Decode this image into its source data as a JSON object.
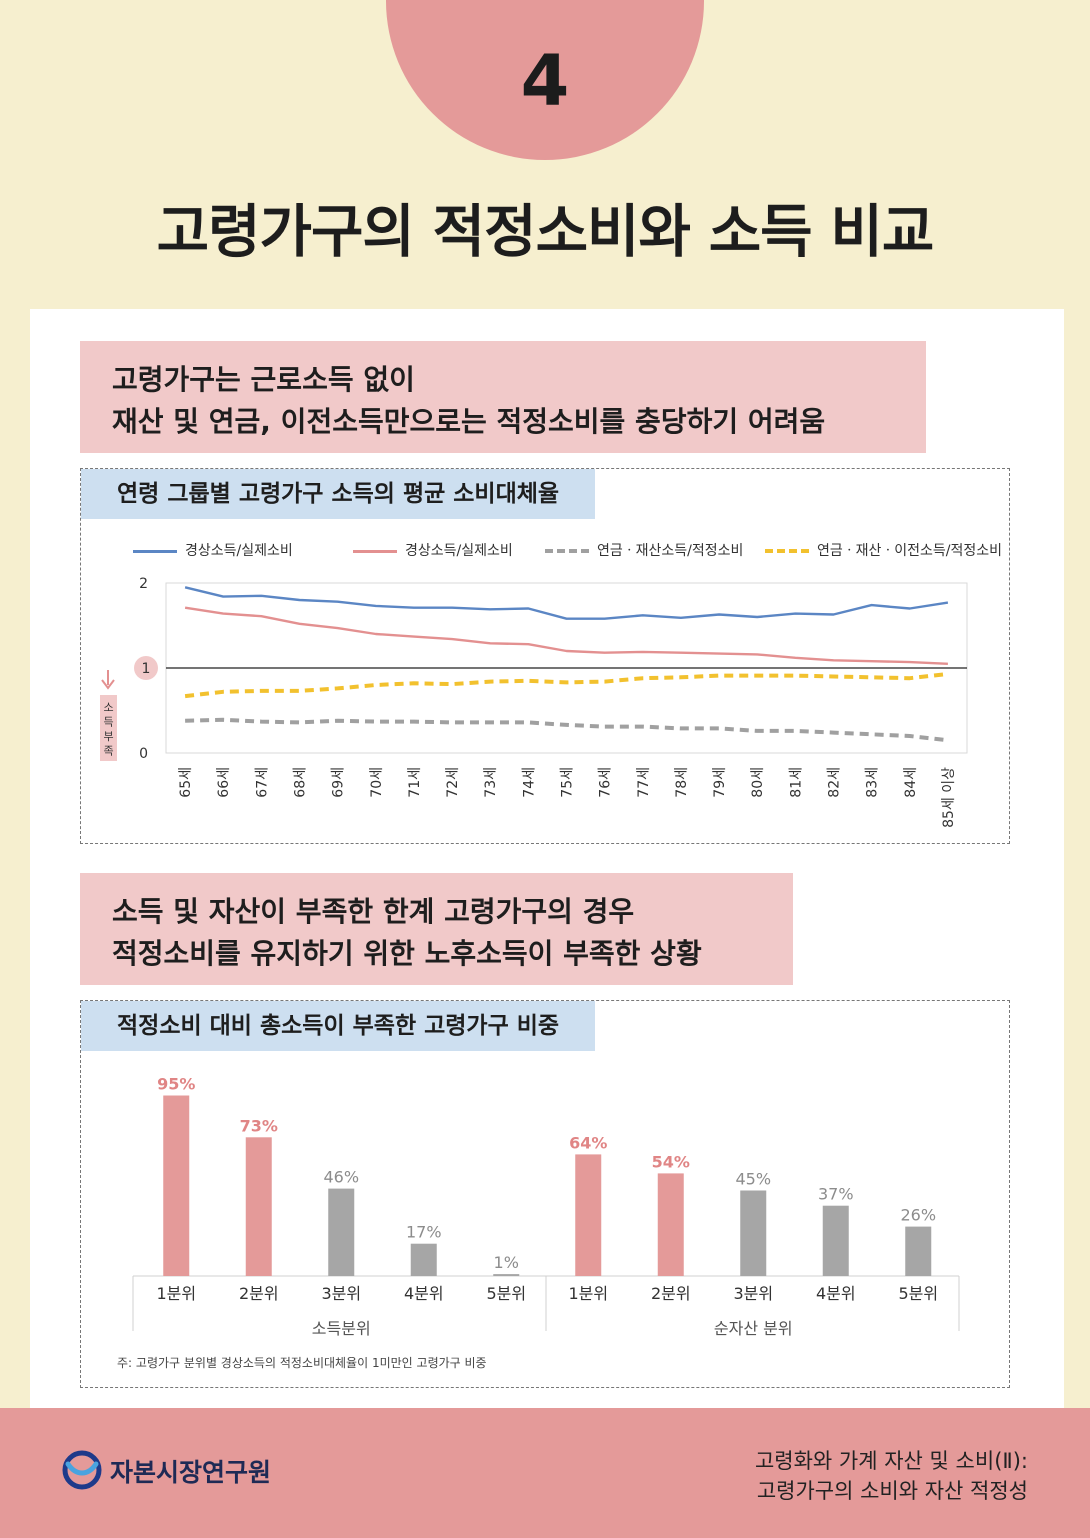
{
  "header": {
    "number": "4",
    "title": "고령가구의 적정소비와 소득 비교"
  },
  "section1": {
    "callout_line1": "고령가구는 근로소득 없이",
    "callout_line2": "재산 및 연금, 이전소득만으로는 적정소비를 충당하기 어려움",
    "chart_title": "연령 그룹별 고령가구 소득의 평균 소비대체율",
    "shortfall_label": "소득부족",
    "highlight_value": "1"
  },
  "section2": {
    "callout_line1": "소득 및 자산이 부족한 한계 고령가구의 경우",
    "callout_line2": "적정소비를 유지하기 위한 노후소득이 부족한 상황",
    "chart_title": "적정소비 대비 총소득이 부족한 고령가구 비중",
    "note": "주: 고령가구 분위별 경상소득의 적정소비대체율이 1미만인 고령가구 비중"
  },
  "colors": {
    "red": "#e49a99",
    "gray": "#a6a6a6",
    "blue": "#5b86c4",
    "pink": "#e39090",
    "dgray": "#a0a0a0",
    "yellow": "#f2c12e"
  },
  "footer": {
    "org": "자본시장연구원",
    "line1": "고령화와 가계 자산 및 소비(Ⅱ):",
    "line2": "고령가구의 소비와 자산 적정성"
  },
  "chart_data": [
    {
      "type": "line",
      "title": "연령 그룹별 고령가구 소득의 평균 소비대체율",
      "categories": [
        "65세",
        "66세",
        "67세",
        "68세",
        "69세",
        "70세",
        "71세",
        "72세",
        "73세",
        "74세",
        "75세",
        "76세",
        "77세",
        "78세",
        "79세",
        "80세",
        "81세",
        "82세",
        "83세",
        "84세",
        "85세 이상"
      ],
      "ylim": [
        0,
        2
      ],
      "yticks": [
        "0",
        "1",
        "2"
      ],
      "reference_line": 1,
      "legend_position": "top",
      "series": [
        {
          "name": "경상소득/실제소비",
          "style": "solid",
          "color": "#5b86c4",
          "values": [
            1.95,
            1.84,
            1.85,
            1.8,
            1.78,
            1.73,
            1.71,
            1.71,
            1.69,
            1.7,
            1.58,
            1.58,
            1.62,
            1.59,
            1.63,
            1.6,
            1.64,
            1.63,
            1.74,
            1.7,
            1.77
          ]
        },
        {
          "name": "경상소득/실제소비",
          "style": "solid",
          "color": "#e39090",
          "values": [
            1.71,
            1.64,
            1.61,
            1.52,
            1.47,
            1.4,
            1.37,
            1.34,
            1.29,
            1.28,
            1.2,
            1.18,
            1.19,
            1.18,
            1.17,
            1.16,
            1.12,
            1.09,
            1.08,
            1.07,
            1.05
          ]
        },
        {
          "name": "연금ㆍ재산소득/적정소비",
          "style": "dashed",
          "color": "#a0a0a0",
          "values": [
            0.38,
            0.39,
            0.37,
            0.36,
            0.38,
            0.37,
            0.37,
            0.36,
            0.36,
            0.36,
            0.33,
            0.31,
            0.31,
            0.29,
            0.29,
            0.26,
            0.26,
            0.24,
            0.22,
            0.2,
            0.15
          ]
        },
        {
          "name": "연금ㆍ재산ㆍ이전소득/적정소비",
          "style": "dashed",
          "color": "#f2c12e",
          "values": [
            0.67,
            0.72,
            0.73,
            0.73,
            0.76,
            0.8,
            0.82,
            0.81,
            0.84,
            0.85,
            0.83,
            0.84,
            0.88,
            0.89,
            0.91,
            0.91,
            0.91,
            0.9,
            0.89,
            0.88,
            0.93
          ]
        }
      ]
    },
    {
      "type": "bar",
      "title": "적정소비 대비 총소득이 부족한 고령가구 비중",
      "groups": [
        {
          "name": "소득분위",
          "categories": [
            "1분위",
            "2분위",
            "3분위",
            "4분위",
            "5분위"
          ],
          "values": [
            95,
            73,
            46,
            17,
            1
          ],
          "labels": [
            "95%",
            "73%",
            "46%",
            "17%",
            "1%"
          ],
          "highlight": [
            true,
            true,
            false,
            false,
            false
          ]
        },
        {
          "name": "순자산 분위",
          "categories": [
            "1분위",
            "2분위",
            "3분위",
            "4분위",
            "5분위"
          ],
          "values": [
            64,
            54,
            45,
            37,
            26
          ],
          "labels": [
            "64%",
            "54%",
            "45%",
            "37%",
            "26%"
          ],
          "highlight": [
            true,
            true,
            false,
            false,
            false
          ]
        }
      ],
      "ylim": [
        0,
        100
      ]
    }
  ]
}
